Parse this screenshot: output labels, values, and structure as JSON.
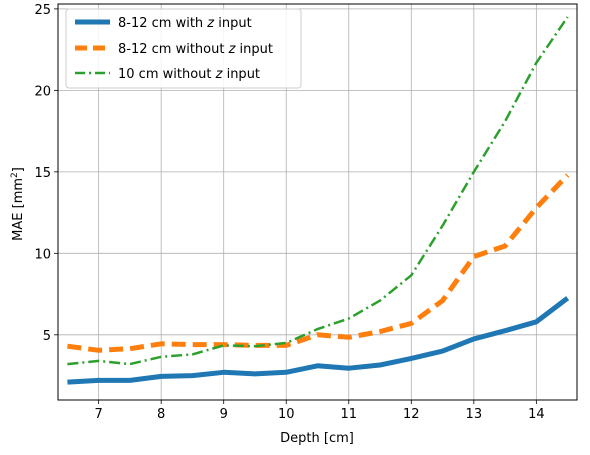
{
  "chart_data": {
    "type": "line",
    "xlabel": "Depth [cm]",
    "ylabel_main": "MAE [mm",
    "ylabel_sup": "2",
    "ylabel_close": "]",
    "xlim": [
      6.35,
      14.65
    ],
    "ylim": [
      1.0,
      25.3
    ],
    "xticks": [
      7,
      8,
      9,
      10,
      11,
      12,
      13,
      14
    ],
    "yticks": [
      5,
      10,
      15,
      20,
      25
    ],
    "grid": true,
    "legend_position": "top-left",
    "x": [
      6.5,
      7,
      7.5,
      8,
      8.5,
      9,
      9.5,
      10,
      10.5,
      11,
      11.5,
      12,
      12.5,
      13,
      13.5,
      14,
      14.5
    ],
    "series": [
      {
        "name_prefix": "8-12 cm with ",
        "name_var": "z",
        "name_suffix": " input",
        "color": "#1f77b4",
        "style": "solid",
        "values": [
          2.1,
          2.2,
          2.2,
          2.45,
          2.5,
          2.7,
          2.6,
          2.7,
          3.1,
          2.95,
          3.15,
          3.55,
          4.0,
          4.75,
          5.25,
          5.8,
          7.25
        ]
      },
      {
        "name_prefix": "8-12 cm without ",
        "name_var": "z",
        "name_suffix": " input",
        "color": "#ff7f0e",
        "style": "dashed",
        "values": [
          4.3,
          4.05,
          4.15,
          4.45,
          4.4,
          4.4,
          4.35,
          4.35,
          5.0,
          4.85,
          5.2,
          5.7,
          7.1,
          9.8,
          10.45,
          12.8,
          14.8
        ]
      },
      {
        "name_prefix": "10 cm without ",
        "name_var": "z",
        "name_suffix": " input",
        "color": "#2ca02c",
        "style": "dashdot",
        "values": [
          3.2,
          3.4,
          3.2,
          3.65,
          3.8,
          4.35,
          4.3,
          4.5,
          5.35,
          6.0,
          7.1,
          8.65,
          11.7,
          15.0,
          18.1,
          21.7,
          24.5
        ]
      }
    ]
  }
}
